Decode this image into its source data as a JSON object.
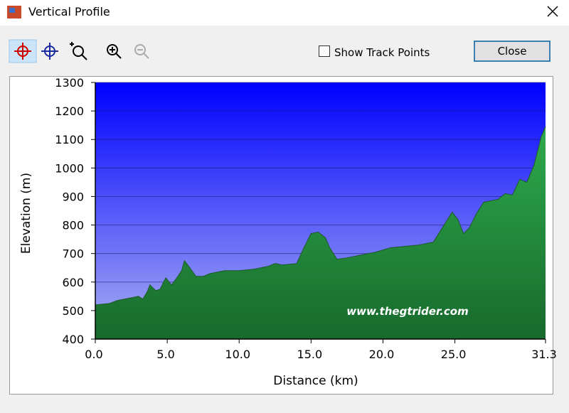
{
  "window": {
    "title": "Vertical Profile"
  },
  "toolbar": {
    "checkbox_label": "Show Track Points",
    "button": "Close"
  },
  "chart_data": {
    "type": "area",
    "x_label": "Distance (km)",
    "y_label": "Elevation (m)",
    "annotation": "www.thegtrider.com",
    "color": "#2faa4c",
    "x": [
      0,
      1,
      1.5,
      2,
      2.5,
      3,
      3.3,
      3.6,
      3.8,
      4.2,
      4.5,
      4.9,
      5.3,
      5.6,
      6.0,
      6.2,
      6.5,
      7,
      7.5,
      8,
      9,
      10,
      11,
      12,
      12.5,
      13,
      14,
      14.5,
      15,
      15.5,
      16,
      16.3,
      16.8,
      17.5,
      18.5,
      19.5,
      20.5,
      21.5,
      22.5,
      23.5,
      24,
      24.5,
      24.8,
      25.2,
      25.6,
      26,
      26.5,
      27,
      27.5,
      28,
      28.5,
      29,
      29.5,
      30,
      30.5,
      31,
      31.3
    ],
    "values": [
      520,
      525,
      535,
      540,
      545,
      550,
      540,
      565,
      590,
      570,
      575,
      615,
      590,
      610,
      640,
      675,
      655,
      620,
      620,
      630,
      640,
      640,
      645,
      655,
      665,
      660,
      665,
      720,
      770,
      775,
      755,
      720,
      680,
      685,
      695,
      705,
      720,
      725,
      730,
      740,
      780,
      820,
      845,
      820,
      770,
      790,
      840,
      880,
      885,
      890,
      910,
      905,
      960,
      950,
      1010,
      1110,
      1145
    ],
    "xlim": [
      0,
      31.3
    ],
    "ylim": [
      400,
      1300
    ],
    "xticks": [
      {
        "value": 0,
        "label": "0.0"
      },
      {
        "value": 5,
        "label": "5.0"
      },
      {
        "value": 10,
        "label": "10.0"
      },
      {
        "value": 15,
        "label": "15.0"
      },
      {
        "value": 20,
        "label": "20.0"
      },
      {
        "value": 25,
        "label": "25.0"
      },
      31.3
    ],
    "yticks": [
      400,
      500,
      600,
      700,
      800,
      900,
      1000,
      1100,
      1200,
      1300
    ],
    "grid": true
  }
}
